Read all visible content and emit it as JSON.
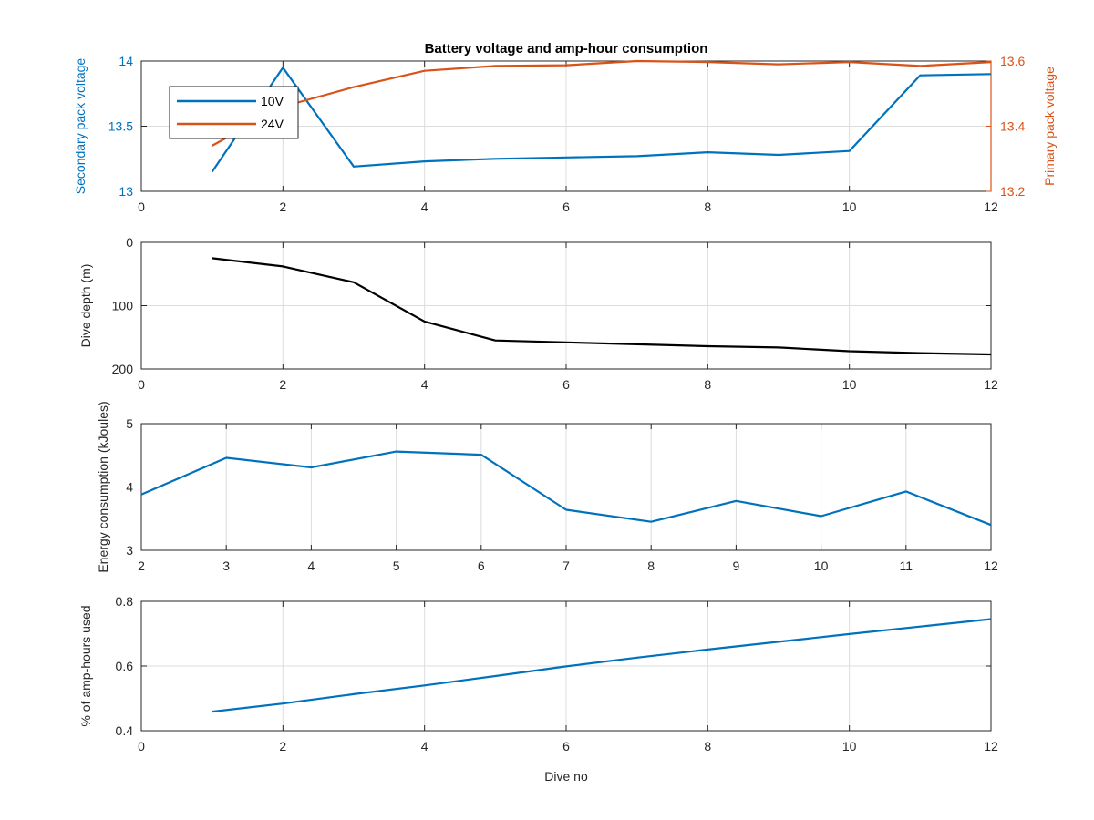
{
  "figure": {
    "title": "Battery voltage and amp-hour consumption",
    "xlabel": "Dive no"
  },
  "colors": {
    "blue": "#0072BD",
    "orange": "#D95319",
    "black": "#000000",
    "grid": "#dcdcdc",
    "axis_text": "#262626"
  },
  "chart_data": [
    {
      "type": "line",
      "title": "Battery voltage and amp-hour consumption",
      "ylabel": "Secondary pack voltage",
      "ylabel_right": "Primary pack voltage",
      "xlim": [
        0,
        12
      ],
      "ylim": [
        13,
        14
      ],
      "ylim_right": [
        13.2,
        13.6
      ],
      "xticks": [
        "0",
        "2",
        "4",
        "6",
        "8",
        "10",
        "12"
      ],
      "yticks": [
        "13",
        "13.5",
        "14"
      ],
      "yticks_right": [
        "13.2",
        "13.4",
        "13.6"
      ],
      "grid": true,
      "legend_position": "top-left",
      "series": [
        {
          "name": "10V",
          "axis": "left",
          "color": "#0072BD",
          "x": [
            1,
            2,
            3,
            4,
            5,
            6,
            7,
            8,
            9,
            10,
            11,
            12
          ],
          "y": [
            13.15,
            13.95,
            13.19,
            13.23,
            13.25,
            13.26,
            13.27,
            13.3,
            13.28,
            13.31,
            13.89,
            13.9
          ]
        },
        {
          "name": "24V",
          "axis": "right",
          "color": "#D95319",
          "x": [
            1,
            2,
            3,
            4,
            5,
            6,
            7,
            8,
            9,
            10,
            11,
            12
          ],
          "y": [
            13.34,
            13.46,
            13.52,
            13.57,
            13.585,
            13.587,
            13.6,
            13.597,
            13.59,
            13.597,
            13.585,
            13.597
          ]
        }
      ]
    },
    {
      "type": "line",
      "ylabel": "Dive depth (m)",
      "xlim": [
        0,
        12
      ],
      "ylim": [
        0,
        200
      ],
      "y_reversed": true,
      "xticks": [
        "0",
        "2",
        "4",
        "6",
        "8",
        "10",
        "12"
      ],
      "yticks": [
        "0",
        "100",
        "200"
      ],
      "grid": true,
      "series": [
        {
          "color": "#000000",
          "x": [
            1,
            2,
            3,
            4,
            5,
            6,
            7,
            8,
            9,
            10,
            11,
            12
          ],
          "y": [
            25,
            38,
            63,
            125,
            155,
            158,
            161,
            164,
            166,
            172,
            175,
            177
          ]
        }
      ]
    },
    {
      "type": "line",
      "ylabel": "Energy consumption (kJoules)",
      "xlim": [
        2,
        12
      ],
      "ylim": [
        3,
        5
      ],
      "xticks": [
        "2",
        "3",
        "4",
        "5",
        "6",
        "7",
        "8",
        "9",
        "10",
        "11",
        "12"
      ],
      "yticks": [
        "3",
        "4",
        "5"
      ],
      "grid": true,
      "series": [
        {
          "color": "#0072BD",
          "x": [
            2,
            3,
            4,
            5,
            6,
            7,
            8,
            9,
            10,
            11,
            12
          ],
          "y": [
            3.88,
            4.46,
            4.31,
            4.56,
            4.51,
            3.64,
            3.45,
            3.78,
            3.54,
            3.93,
            3.4
          ]
        }
      ]
    },
    {
      "type": "line",
      "ylabel": "% of amp-hours used",
      "xlabel": "Dive no",
      "xlim": [
        0,
        12
      ],
      "ylim": [
        0.4,
        0.8
      ],
      "xticks": [
        "0",
        "2",
        "4",
        "6",
        "8",
        "10",
        "12"
      ],
      "yticks": [
        "0.4",
        "0.6",
        "0.8"
      ],
      "grid": true,
      "series": [
        {
          "color": "#0072BD",
          "x": [
            1,
            2,
            3,
            4,
            5,
            6,
            7,
            8,
            9,
            10,
            11,
            12
          ],
          "y": [
            0.459,
            0.484,
            0.513,
            0.54,
            0.569,
            0.599,
            0.626,
            0.651,
            0.675,
            0.699,
            0.722,
            0.745
          ]
        }
      ]
    }
  ]
}
